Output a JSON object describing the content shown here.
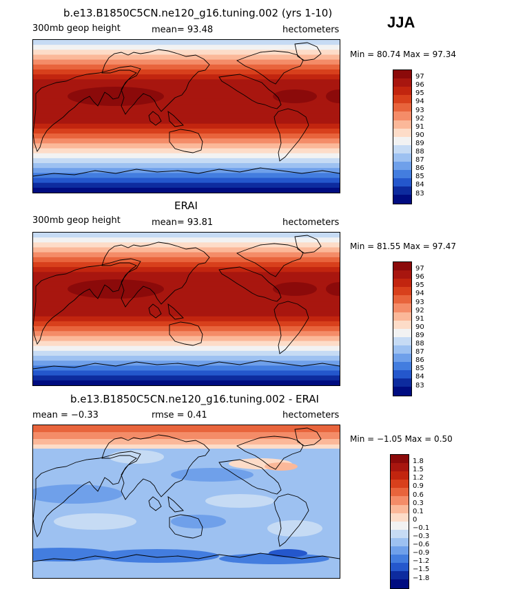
{
  "season": "JJA",
  "panels": [
    {
      "title": "b.e13.B1850C5CN.ne120_g16.tuning.002 (yrs 1-10)",
      "left_label": "300mb geop height",
      "center_label": "mean=  93.48",
      "right_label": "hectometers",
      "minmax": "Min =  80.74 Max =  97.34",
      "levels": [
        "97",
        "96",
        "95",
        "94",
        "93",
        "92",
        "91",
        "90",
        "89",
        "88",
        "87",
        "86",
        "85",
        "84",
        "83"
      ],
      "colors": [
        "#8b0a0a",
        "#a8160f",
        "#c2250f",
        "#d8401c",
        "#e8643c",
        "#f48c68",
        "#fbb899",
        "#fddcc8",
        "#f2f2f2",
        "#c6dbf4",
        "#9dc1f1",
        "#6fa0ea",
        "#437ddf",
        "#2457cc",
        "#0d2b9e",
        "#000c80"
      ],
      "field": "zonal",
      "mean_hm": 93.48
    },
    {
      "title": "ERAI",
      "left_label": "300mb geop height",
      "center_label": "mean=  93.81",
      "right_label": "hectometers",
      "minmax": "Min =  81.55 Max =  97.47",
      "levels": [
        "97",
        "96",
        "95",
        "94",
        "93",
        "92",
        "91",
        "90",
        "89",
        "88",
        "87",
        "86",
        "85",
        "84",
        "83"
      ],
      "colors": [
        "#8b0a0a",
        "#a8160f",
        "#c2250f",
        "#d8401c",
        "#e8643c",
        "#f48c68",
        "#fbb899",
        "#fddcc8",
        "#f2f2f2",
        "#c6dbf4",
        "#9dc1f1",
        "#6fa0ea",
        "#437ddf",
        "#2457cc",
        "#0d2b9e",
        "#000c80"
      ],
      "field": "zonal",
      "mean_hm": 93.81
    },
    {
      "title": "b.e13.B1850C5CN.ne120_g16.tuning.002 - ERAI",
      "left_label": "mean =  −0.33",
      "center_label": "rmse =   0.41",
      "right_label": "hectometers",
      "minmax": "Min =  −1.05 Max =   0.50",
      "levels": [
        "1.8",
        "1.5",
        "1.2",
        "0.9",
        "0.6",
        "0.3",
        "0.1",
        "0",
        "−0.1",
        "−0.3",
        "−0.6",
        "−0.9",
        "−1.2",
        "−1.5",
        "−1.8"
      ],
      "colors": [
        "#8b0a0a",
        "#a8160f",
        "#c2250f",
        "#d8401c",
        "#e8643c",
        "#f48c68",
        "#fbb899",
        "#fddcc8",
        "#f2f2f2",
        "#c6dbf4",
        "#9dc1f1",
        "#6fa0ea",
        "#437ddf",
        "#2457cc",
        "#0d2b9e",
        "#000c80"
      ],
      "field": "diff",
      "mean_hm": -0.33,
      "rmse_hm": 0.41
    }
  ]
}
